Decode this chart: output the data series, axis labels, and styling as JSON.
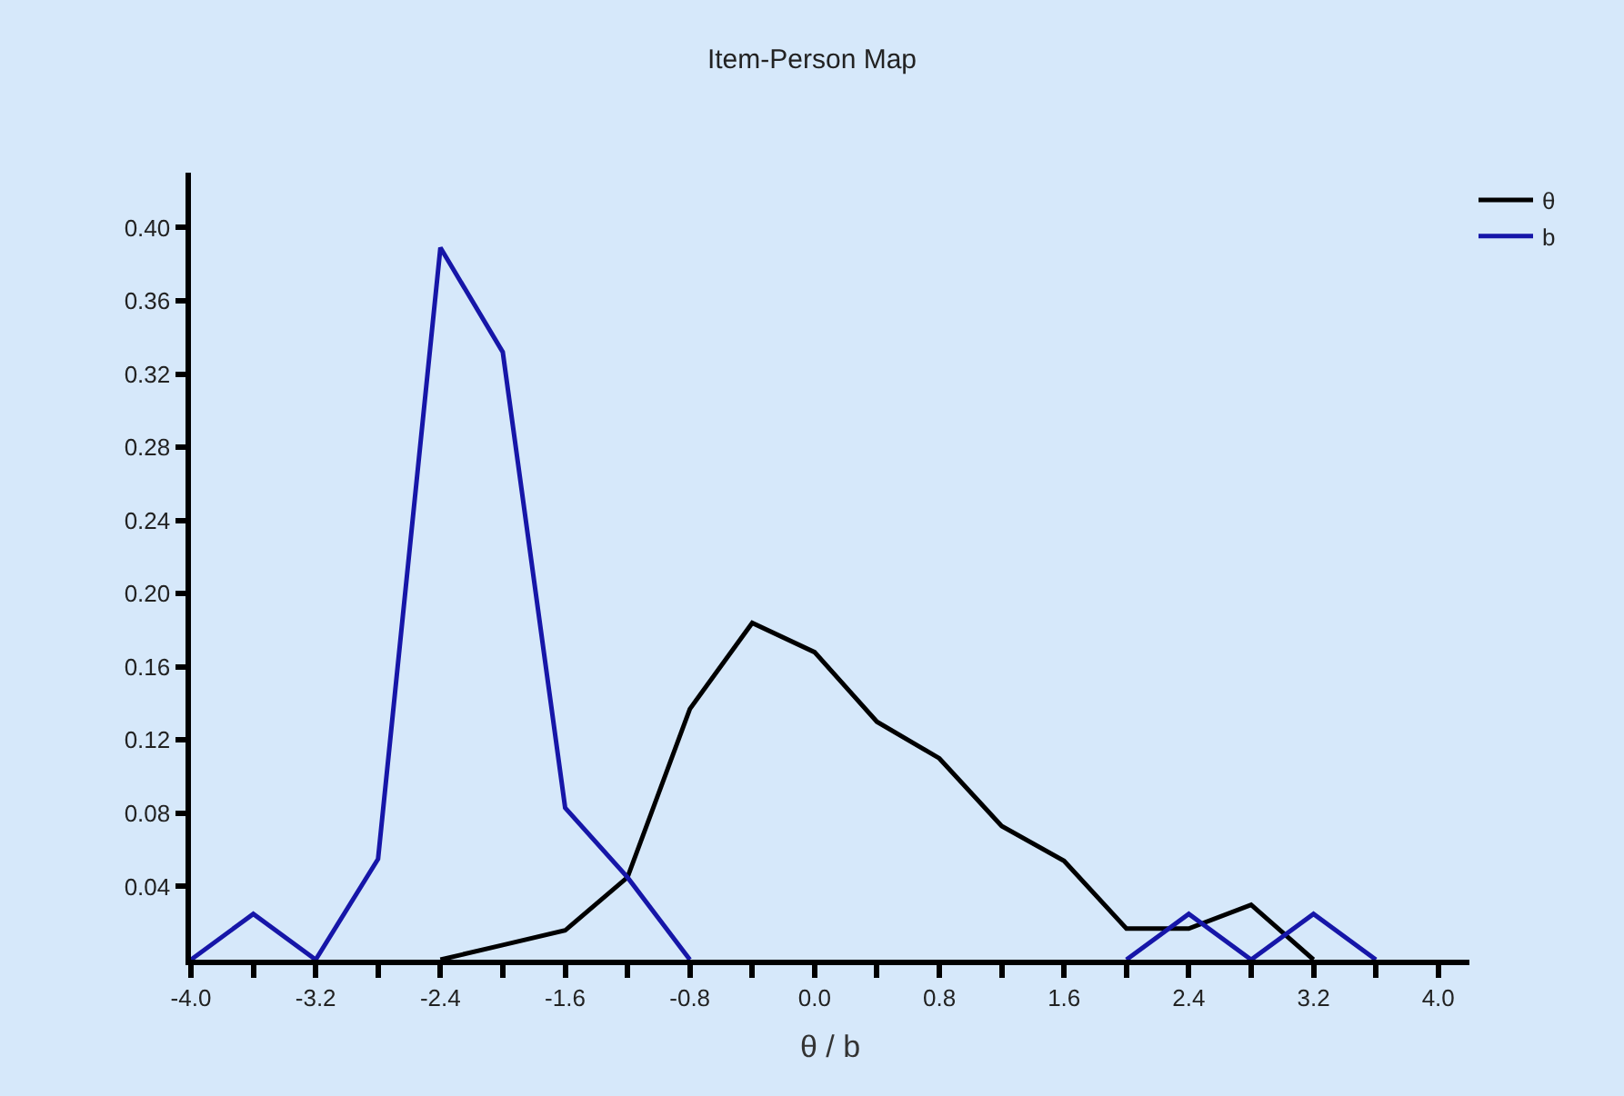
{
  "chart_data": {
    "type": "line",
    "title": "Item-Person Map",
    "xlabel": "θ / b",
    "x": [
      -4.0,
      -3.6,
      -3.2,
      -2.8,
      -2.4,
      -2.0,
      -1.6,
      -1.2,
      -0.8,
      -0.4,
      0.0,
      0.4,
      0.8,
      1.2,
      1.6,
      2.0,
      2.4,
      2.8,
      3.2,
      3.6
    ],
    "series": [
      {
        "name": "θ",
        "color": "#000000",
        "values": [
          null,
          null,
          null,
          null,
          0.0,
          0.008,
          0.016,
          0.045,
          0.137,
          0.184,
          0.168,
          0.13,
          0.11,
          0.073,
          0.054,
          0.017,
          0.017,
          0.03,
          0.0,
          null
        ]
      },
      {
        "name": "b",
        "color": "#1616a8",
        "values": [
          0.0,
          0.025,
          0.0,
          0.055,
          0.389,
          0.332,
          0.083,
          0.045,
          0.0,
          null,
          null,
          null,
          null,
          null,
          null,
          0.0,
          0.025,
          0.0,
          0.025,
          0.0
        ]
      }
    ],
    "xlim": [
      -4.0,
      4.2
    ],
    "xticks": [
      {
        "value": -4,
        "label": "-4.0"
      },
      {
        "value": -3.6,
        "label": null
      },
      -3.2,
      {
        "value": -2.8,
        "label": null
      },
      -2.4,
      {
        "value": -2.0,
        "label": null
      },
      -1.6,
      {
        "value": -1.2,
        "label": null
      },
      -0.8,
      {
        "value": -0.4,
        "label": null
      },
      {
        "value": 0,
        "label": "0.0"
      },
      {
        "value": 0.4,
        "label": null
      },
      0.8,
      {
        "value": 1.2,
        "label": null
      },
      1.6,
      {
        "value": 2.0,
        "label": null
      },
      2.4,
      {
        "value": 2.8,
        "label": null
      },
      3.2,
      {
        "value": 3.6,
        "label": null
      },
      {
        "value": 4,
        "label": "4.0"
      }
    ],
    "ylim": [
      0,
      0.43
    ],
    "yticks": [
      {
        "value": 0.04,
        "label": "0.04"
      },
      {
        "value": 0.08,
        "label": "0.08"
      },
      {
        "value": 0.12,
        "label": "0.12"
      },
      {
        "value": 0.16,
        "label": "0.16"
      },
      {
        "value": 0.2,
        "label": "0.20"
      },
      {
        "value": 0.24,
        "label": "0.24"
      },
      {
        "value": 0.28,
        "label": "0.28"
      },
      {
        "value": 0.32,
        "label": "0.32"
      },
      {
        "value": 0.36,
        "label": "0.36"
      },
      {
        "value": 0.4,
        "label": "0.40"
      }
    ],
    "grid": false,
    "legend": "top right",
    "marker": "none",
    "line_style": "solid"
  }
}
